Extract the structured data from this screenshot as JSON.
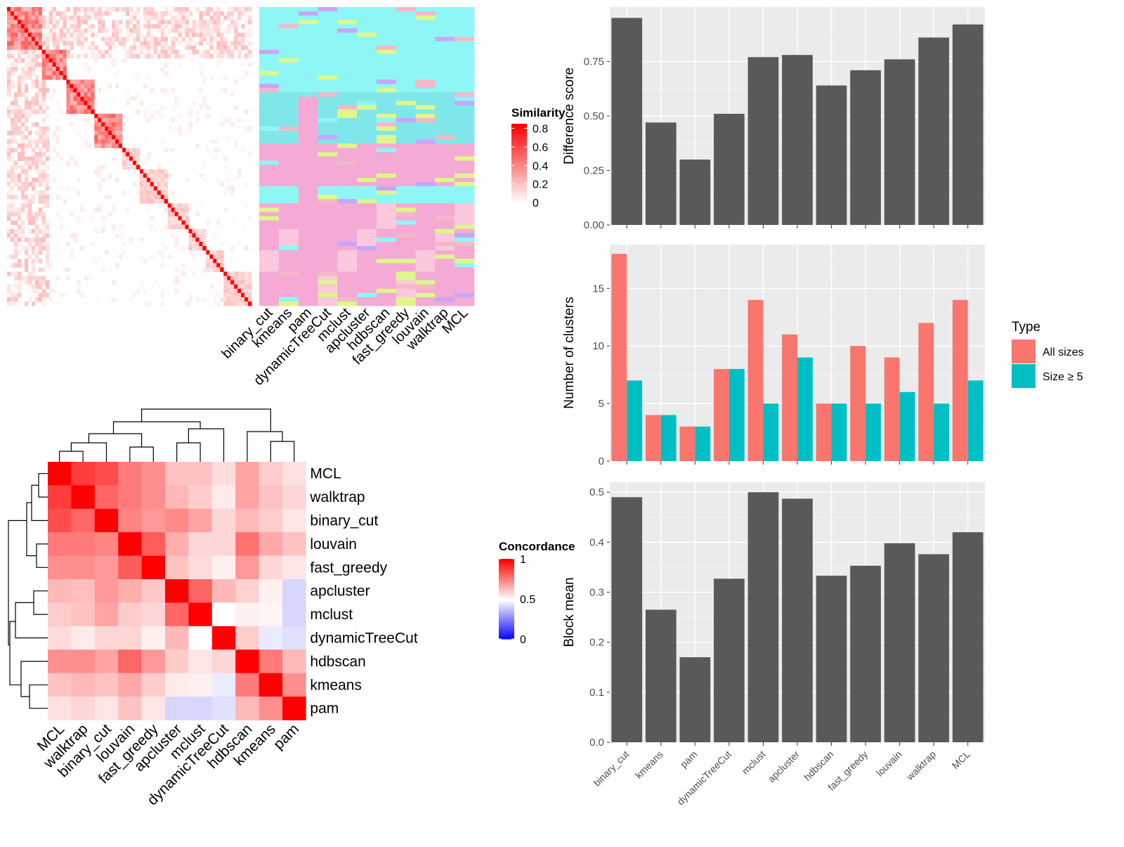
{
  "chart_data": [
    {
      "type": "heatmap",
      "panel": "similarity",
      "legend_title": "Similarity",
      "legend_ticks": [
        "0",
        "0.2",
        "0.4",
        "0.6",
        "0.8"
      ],
      "column_labels": [
        "binary_cut",
        "kmeans",
        "pam",
        "dynamicTreeCut",
        "mclust",
        "apcluster",
        "hdbscan",
        "fast_greedy",
        "louvain",
        "walktrap",
        "MCL"
      ],
      "block_sizes": [
        10,
        7,
        8,
        8,
        5,
        8,
        6,
        5,
        5,
        8
      ],
      "col_palette": [
        "#8ef7f5",
        "#7fe7ea",
        "#f4aad5",
        "#fbc8dd",
        "#dff78a",
        "#c7a6f9",
        "#f4b8c7"
      ]
    },
    {
      "type": "heatmap",
      "panel": "concordance",
      "legend_title": "Concordance",
      "legend_ticks": [
        "1",
        "0.5",
        "0"
      ],
      "row_labels": [
        "MCL",
        "walktrap",
        "binary_cut",
        "louvain",
        "fast_greedy",
        "apcluster",
        "mclust",
        "dynamicTreeCut",
        "hdbscan",
        "kmeans",
        "pam"
      ],
      "col_labels": [
        "MCL",
        "walktrap",
        "binary_cut",
        "louvain",
        "fast_greedy",
        "apcluster",
        "mclust",
        "dynamicTreeCut",
        "hdbscan",
        "kmeans",
        "pam"
      ],
      "values": [
        [
          1.0,
          0.88,
          0.85,
          0.76,
          0.72,
          0.62,
          0.62,
          0.57,
          0.68,
          0.6,
          0.56
        ],
        [
          0.88,
          1.0,
          0.8,
          0.76,
          0.72,
          0.64,
          0.6,
          0.54,
          0.68,
          0.62,
          0.58
        ],
        [
          0.85,
          0.8,
          1.0,
          0.74,
          0.7,
          0.73,
          0.68,
          0.58,
          0.64,
          0.6,
          0.55
        ],
        [
          0.76,
          0.76,
          0.74,
          1.0,
          0.82,
          0.66,
          0.58,
          0.58,
          0.78,
          0.67,
          0.62
        ],
        [
          0.72,
          0.72,
          0.7,
          0.82,
          1.0,
          0.62,
          0.57,
          0.53,
          0.7,
          0.58,
          0.55
        ],
        [
          0.64,
          0.63,
          0.7,
          0.66,
          0.61,
          1.0,
          0.8,
          0.64,
          0.59,
          0.53,
          0.42
        ],
        [
          0.6,
          0.62,
          0.68,
          0.6,
          0.58,
          0.8,
          1.0,
          0.5,
          0.53,
          0.52,
          0.42
        ],
        [
          0.57,
          0.54,
          0.58,
          0.58,
          0.53,
          0.64,
          0.5,
          1.0,
          0.6,
          0.46,
          0.44
        ],
        [
          0.72,
          0.72,
          0.68,
          0.8,
          0.7,
          0.6,
          0.55,
          0.58,
          1.0,
          0.76,
          0.64
        ],
        [
          0.62,
          0.64,
          0.62,
          0.67,
          0.6,
          0.54,
          0.53,
          0.46,
          0.76,
          1.0,
          0.72
        ],
        [
          0.56,
          0.58,
          0.55,
          0.62,
          0.55,
          0.42,
          0.42,
          0.44,
          0.64,
          0.72,
          1.0
        ]
      ]
    },
    {
      "type": "bar",
      "panel": "difference-score",
      "categories": [
        "binary_cut",
        "kmeans",
        "pam",
        "dynamicTreeCut",
        "mclust",
        "apcluster",
        "hdbscan",
        "fast_greedy",
        "louvain",
        "walktrap",
        "MCL"
      ],
      "values": [
        0.95,
        0.47,
        0.3,
        0.51,
        0.77,
        0.78,
        0.64,
        0.71,
        0.76,
        0.86,
        0.92
      ],
      "ylabel": "Difference score",
      "ylim": [
        0,
        1.0
      ],
      "yticks": [
        "0.00",
        "0.25",
        "0.50",
        "0.75"
      ],
      "color": "#595959"
    },
    {
      "type": "bar",
      "panel": "number-of-clusters",
      "categories": [
        "binary_cut",
        "kmeans",
        "pam",
        "dynamicTreeCut",
        "mclust",
        "apcluster",
        "hdbscan",
        "fast_greedy",
        "louvain",
        "walktrap",
        "MCL"
      ],
      "series": [
        {
          "name": "All sizes",
          "values": [
            18,
            4,
            3,
            8,
            14,
            11,
            5,
            10,
            9,
            12,
            14
          ],
          "color": "#f8766d"
        },
        {
          "name": "Size ≥ 5",
          "values": [
            7,
            4,
            3,
            8,
            5,
            9,
            5,
            5,
            6,
            5,
            7
          ],
          "color": "#00bfc4"
        }
      ],
      "ylabel": "Number of clusters",
      "ylim": [
        0,
        18.8
      ],
      "yticks": [
        "0",
        "5",
        "10",
        "15"
      ],
      "legend_title": "Type",
      "legend_position": "right"
    },
    {
      "type": "bar",
      "panel": "block-mean",
      "categories": [
        "binary_cut",
        "kmeans",
        "pam",
        "dynamicTreeCut",
        "mclust",
        "apcluster",
        "hdbscan",
        "fast_greedy",
        "louvain",
        "walktrap",
        "MCL"
      ],
      "values": [
        0.49,
        0.265,
        0.17,
        0.327,
        0.5,
        0.487,
        0.333,
        0.353,
        0.398,
        0.376,
        0.42
      ],
      "ylabel": "Block mean",
      "ylim": [
        0,
        0.52
      ],
      "yticks": [
        "0.0",
        "0.1",
        "0.2",
        "0.3",
        "0.4",
        "0.5"
      ],
      "color": "#595959"
    }
  ]
}
